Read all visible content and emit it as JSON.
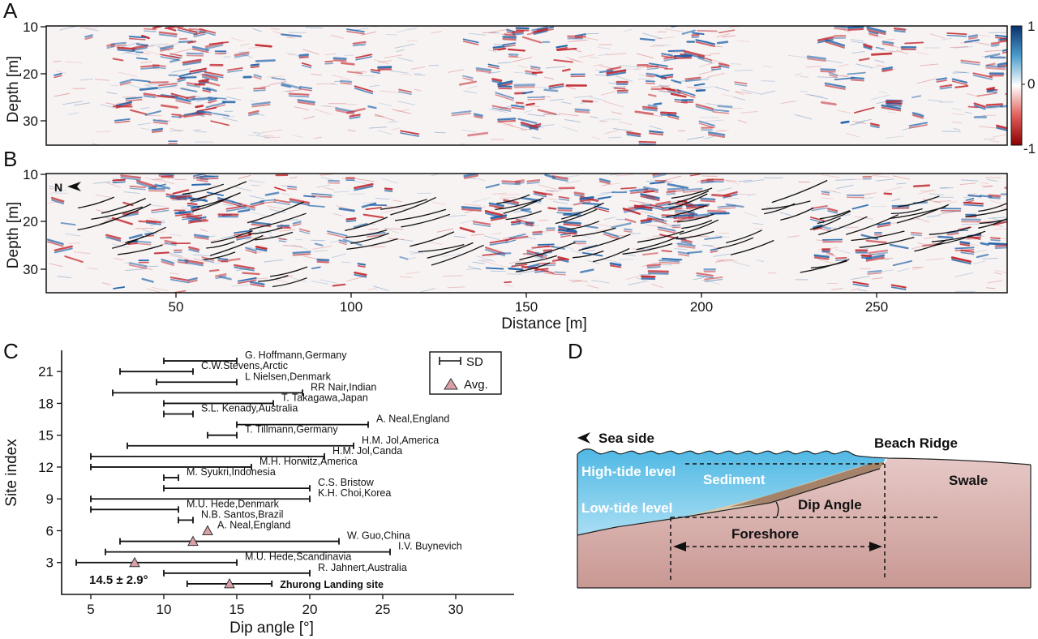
{
  "panels": {
    "a": "A",
    "b": "B",
    "c": "C",
    "d": "D"
  },
  "colors": {
    "radar_positive": "#1a5fa8",
    "radar_negative": "#c0222a",
    "reflector_line": "#111111",
    "marker_fill": "#d9a0a8",
    "sea": "#5ec0e6",
    "ground": "#d9b3b0",
    "sediment": "#bf9f86"
  },
  "radar": {
    "a": {
      "ylabel": "Depth [m]",
      "yticks": [
        "10",
        "20",
        "30"
      ]
    },
    "b": {
      "ylabel": "Depth [m]",
      "yticks": [
        "10",
        "20",
        "30"
      ],
      "north_label": "N"
    },
    "xlabel": "Distance [m]",
    "xticks": [
      "50",
      "100",
      "150",
      "200",
      "250"
    ],
    "colorbar": {
      "top": "1",
      "mid": "0",
      "bottom": "-1"
    }
  },
  "chart_data": {
    "type": "scatter",
    "xlabel": "Dip angle [°]",
    "ylabel": "Site index",
    "xlim": [
      3,
      34
    ],
    "ylim": [
      0,
      23
    ],
    "xticks": [
      "5",
      "10",
      "15",
      "20",
      "25",
      "30"
    ],
    "yticks": [
      "3",
      "6",
      "9",
      "12",
      "15",
      "18",
      "21"
    ],
    "legend": {
      "position": "top-right",
      "sd": "SD",
      "avg": "Avg."
    },
    "sites": [
      {
        "index": 22,
        "label": "G. Hoffmann,Germany",
        "min": 10,
        "max": 15
      },
      {
        "index": 21,
        "label": "C.W.Stevens,Arctic",
        "min": 7,
        "max": 12
      },
      {
        "index": 20,
        "label": "L Nielsen,Denmark",
        "min": 9.5,
        "max": 15
      },
      {
        "index": 19,
        "label": "RR Nair,Indian",
        "min": 6.5,
        "max": 19.5
      },
      {
        "index": 18,
        "label": "T. Takagawa,Japan",
        "min": 10,
        "max": 17.5
      },
      {
        "index": 17,
        "label": "S.L. Kenady,Australia",
        "min": 10,
        "max": 12
      },
      {
        "index": 16,
        "label": "A. Neal,England",
        "min": 15,
        "max": 24
      },
      {
        "index": 15,
        "label": "T. Tillmann,Germany",
        "min": 13,
        "max": 15
      },
      {
        "index": 14,
        "label": "H.M. Jol,America",
        "min": 7.5,
        "max": 23
      },
      {
        "index": 13,
        "label": "H.M. Jol,Canda",
        "min": 5,
        "max": 21
      },
      {
        "index": 12,
        "label": "M.H. Horwitz,America",
        "min": 5,
        "max": 16
      },
      {
        "index": 11,
        "label": "M. Syukri,Indonesia",
        "min": 10,
        "max": 11
      },
      {
        "index": 10,
        "label": "C.S. Bristow",
        "min": 10,
        "max": 20
      },
      {
        "index": 9,
        "label": "K.H. Choi,Korea",
        "min": 5,
        "max": 20
      },
      {
        "index": 8,
        "label": "M.U. Hede,Denmark",
        "min": 5,
        "max": 11
      },
      {
        "index": 7,
        "label": "N.B. Santos,Brazil",
        "min": 11,
        "max": 12
      },
      {
        "index": 6,
        "label": "A. Neal,England",
        "avg": 13
      },
      {
        "index": 5,
        "label": "W. Guo,China",
        "min": 7,
        "max": 22,
        "avg": 12
      },
      {
        "index": 4,
        "label": "I.V. Buynevich",
        "min": 6,
        "max": 25.5
      },
      {
        "index": 3,
        "label": "M.U. Hede,Scandinavia",
        "min": 4,
        "max": 15,
        "avg": 8
      },
      {
        "index": 2,
        "label": "R. Jahnert,Australia",
        "min": 10,
        "max": 20
      },
      {
        "index": 1,
        "label": "Zhurong Landing site",
        "min": 11.6,
        "max": 17.4,
        "avg": 14.5,
        "bold": true
      }
    ],
    "annotation": "14.5 ± 2.9°"
  },
  "diagram": {
    "sea_side": "Sea side",
    "beach_ridge": "Beach Ridge",
    "high_tide": "High-tide level",
    "sediment": "Sediment",
    "swale": "Swale",
    "low_tide": "Low-tide level",
    "dip_angle": "Dip Angle",
    "foreshore": "Foreshore"
  }
}
